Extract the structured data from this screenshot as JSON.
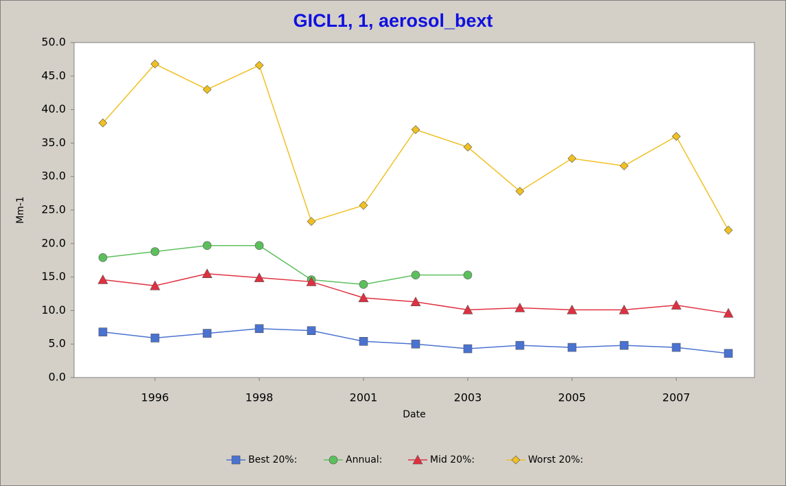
{
  "chart_data": {
    "type": "line",
    "title": "GICL1, 1, aerosol_bext",
    "x_label": "Date",
    "y_label": "Mm-1",
    "categories": [
      null,
      "1996",
      null,
      "1998",
      null,
      "2001",
      null,
      "2003",
      null,
      "2005",
      null,
      "2007",
      null
    ],
    "series": [
      {
        "name": "Best 20%:",
        "color": "#4a72d0",
        "marker": "square",
        "values": [
          6.8,
          5.9,
          6.6,
          7.3,
          7.0,
          5.4,
          5.0,
          4.3,
          4.8,
          4.5,
          4.8,
          4.5,
          3.6
        ]
      },
      {
        "name": "Annual:",
        "color": "#5cbf5c",
        "marker": "circle",
        "values": [
          17.9,
          18.8,
          19.7,
          19.7,
          14.6,
          13.9,
          15.3,
          15.3,
          null,
          null,
          null,
          null,
          null
        ]
      },
      {
        "name": "Mid 20%:",
        "color": "#e03040",
        "marker": "triangle",
        "values": [
          14.6,
          13.7,
          15.5,
          14.9,
          14.3,
          11.9,
          11.3,
          10.1,
          10.4,
          10.1,
          10.1,
          10.8,
          9.6
        ]
      },
      {
        "name": "Worst 20%:",
        "color": "#f0c020",
        "marker": "diamond",
        "values": [
          38.0,
          46.8,
          43.0,
          46.6,
          23.3,
          25.7,
          37.0,
          34.4,
          27.8,
          32.7,
          31.6,
          36.0,
          22.0
        ]
      }
    ],
    "ylim": [
      0,
      50
    ],
    "yticks": [
      {
        "value": 0,
        "label": "0.0"
      },
      {
        "value": 5,
        "label": "5.0"
      },
      {
        "value": 10,
        "label": "10.0"
      },
      {
        "value": 15,
        "label": "15.0"
      },
      {
        "value": 20,
        "label": "20.0"
      },
      {
        "value": 25,
        "label": "25.0"
      },
      {
        "value": 30,
        "label": "30.0"
      },
      {
        "value": 35,
        "label": "35.0"
      },
      {
        "value": 40,
        "label": "40.0"
      },
      {
        "value": 45,
        "label": "45.0"
      },
      {
        "value": 50,
        "label": "50.0"
      }
    ],
    "legend": "bottom"
  }
}
